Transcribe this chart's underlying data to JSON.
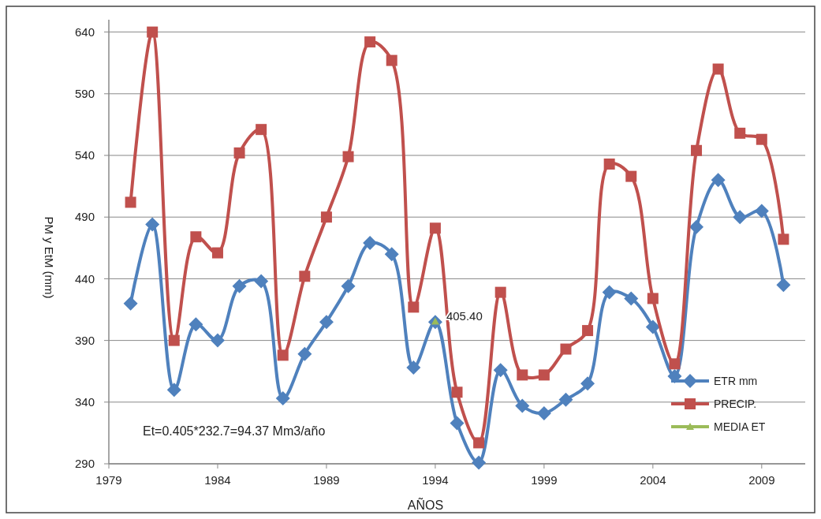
{
  "chart_data": {
    "type": "line",
    "xlabel": "AÑOS",
    "ylabel": "PM y EtM (mm)",
    "x": [
      1980,
      1981,
      1982,
      1983,
      1984,
      1985,
      1986,
      1987,
      1988,
      1989,
      1990,
      1991,
      1992,
      1993,
      1994,
      1995,
      1996,
      1997,
      1998,
      1999,
      2000,
      2001,
      2002,
      2003,
      2004,
      2005,
      2006,
      2007,
      2008,
      2009,
      2010
    ],
    "series": [
      {
        "name": "ETR mm",
        "color": "#4f81bd",
        "marker": "diamond",
        "values": [
          420,
          484,
          350,
          403,
          390,
          434,
          438,
          343,
          379,
          405,
          434,
          469,
          460,
          368,
          405,
          323,
          291,
          366,
          337,
          331,
          342,
          355,
          429,
          424,
          401,
          361,
          482,
          520,
          490,
          495,
          435
        ]
      },
      {
        "name": "PRECIP.",
        "color": "#c0504d",
        "marker": "square",
        "values": [
          502,
          640,
          390,
          474,
          461,
          542,
          561,
          378,
          442,
          490,
          539,
          632,
          617,
          417,
          481,
          348,
          307,
          429,
          362,
          362,
          383,
          398,
          533,
          523,
          424,
          371,
          544,
          610,
          558,
          553,
          472
        ]
      },
      {
        "name": "MEDIA ET",
        "color": "#9bbb59",
        "marker": "triangle",
        "x": [
          1994
        ],
        "values": [
          405.4
        ],
        "value_labels": [
          "405.40"
        ]
      }
    ],
    "xlim": [
      1979,
      2011
    ],
    "xticks": [
      1979,
      1984,
      1989,
      1994,
      1999,
      2004,
      2009
    ],
    "ylim": [
      290,
      650
    ],
    "yticks": [
      290,
      340,
      390,
      440,
      490,
      540,
      590,
      640
    ],
    "grid": "y",
    "legend": "bottom right",
    "annotations": [
      "Et=0.405*232.7=94.37  Mm3/año"
    ]
  }
}
